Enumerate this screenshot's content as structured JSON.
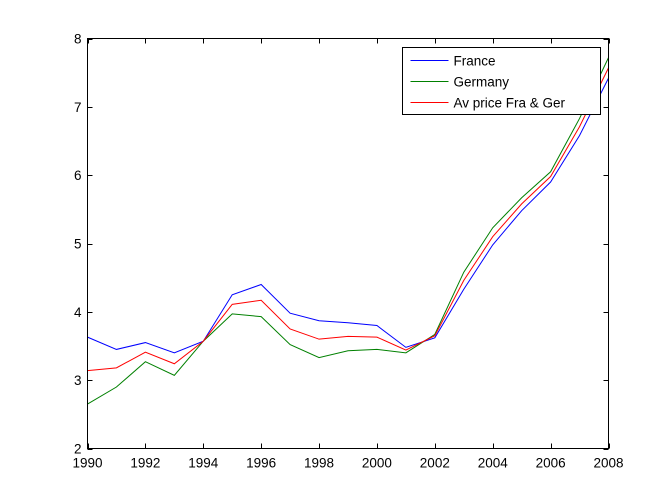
{
  "chart_data": {
    "type": "line",
    "x": [
      1990,
      1991,
      1992,
      1993,
      1994,
      1995,
      1996,
      1997,
      1998,
      1999,
      2000,
      2001,
      2002,
      2003,
      2004,
      2005,
      2006,
      2007,
      2008
    ],
    "series": [
      {
        "name": "France",
        "color": "#0000ff",
        "values": [
          3.63,
          3.45,
          3.55,
          3.4,
          3.57,
          4.25,
          4.4,
          3.98,
          3.87,
          3.84,
          3.8,
          3.48,
          3.62,
          4.33,
          4.98,
          5.48,
          5.9,
          6.58,
          7.42
        ]
      },
      {
        "name": "Germany",
        "color": "#008000",
        "values": [
          2.65,
          2.9,
          3.27,
          3.07,
          3.57,
          3.97,
          3.93,
          3.52,
          3.33,
          3.43,
          3.45,
          3.4,
          3.67,
          4.58,
          5.23,
          5.67,
          6.05,
          6.83,
          7.72
        ]
      },
      {
        "name": "Av price Fra & Ger",
        "color": "#ff0000",
        "values": [
          3.14,
          3.18,
          3.41,
          3.24,
          3.57,
          4.11,
          4.17,
          3.75,
          3.6,
          3.64,
          3.63,
          3.44,
          3.65,
          4.46,
          5.1,
          5.58,
          5.98,
          6.71,
          7.57
        ]
      }
    ],
    "xlim": [
      1990,
      2008
    ],
    "ylim": [
      2,
      8
    ],
    "xticks": [
      1990,
      1992,
      1994,
      1996,
      1998,
      2000,
      2002,
      2004,
      2006,
      2008
    ],
    "yticks": [
      2,
      3,
      4,
      5,
      6,
      7,
      8
    ],
    "xtick_labels": [
      "1990",
      "1992",
      "1994",
      "1996",
      "1998",
      "2000",
      "2002",
      "2004",
      "2006",
      "2008"
    ],
    "ytick_labels": [
      "2",
      "3",
      "4",
      "5",
      "6",
      "7",
      "8"
    ],
    "grid": false,
    "legend_position": "top-right",
    "title": "",
    "xlabel": "",
    "ylabel": ""
  }
}
